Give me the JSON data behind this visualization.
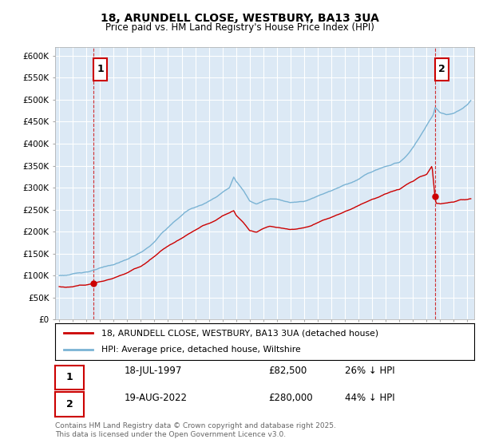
{
  "title": "18, ARUNDELL CLOSE, WESTBURY, BA13 3UA",
  "subtitle": "Price paid vs. HM Land Registry's House Price Index (HPI)",
  "ylim": [
    0,
    600000
  ],
  "yticks": [
    0,
    50000,
    100000,
    150000,
    200000,
    250000,
    300000,
    350000,
    400000,
    450000,
    500000,
    550000,
    600000
  ],
  "ytick_labels": [
    "£0",
    "£50K",
    "£100K",
    "£150K",
    "£200K",
    "£250K",
    "£300K",
    "£350K",
    "£400K",
    "£450K",
    "£500K",
    "£550K",
    "£600K"
  ],
  "hpi_color": "#7ab3d4",
  "price_color": "#cc0000",
  "marker1_x": 1997.54,
  "marker2_x": 2022.63,
  "marker1_price": 82500,
  "marker2_price": 280000,
  "chart_bg": "#dce9f5",
  "grid_color": "#ffffff",
  "legend_line1": "18, ARUNDELL CLOSE, WESTBURY, BA13 3UA (detached house)",
  "legend_line2": "HPI: Average price, detached house, Wiltshire",
  "table_row1": [
    "1",
    "18-JUL-1997",
    "£82,500",
    "26% ↓ HPI"
  ],
  "table_row2": [
    "2",
    "19-AUG-2022",
    "£280,000",
    "44% ↓ HPI"
  ],
  "footer": "Contains HM Land Registry data © Crown copyright and database right 2025.\nThis data is licensed under the Open Government Licence v3.0.",
  "background_color": "#ffffff"
}
